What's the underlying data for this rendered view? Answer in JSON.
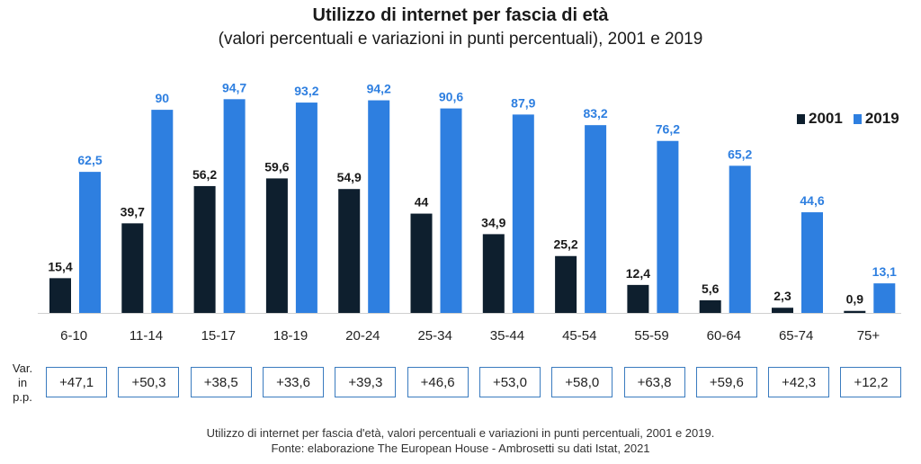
{
  "title": "Utilizzo di internet per fascia di età",
  "subtitle": "(valori percentuali e variazioni in punti percentuali), 2001 e 2019",
  "legend": [
    {
      "name": "2001",
      "color": "#0e1f2e"
    },
    {
      "name": "2019",
      "color": "#2e7fe0"
    }
  ],
  "chart_data": {
    "type": "bar",
    "title": "Utilizzo di internet per fascia di età",
    "subtitle": "(valori percentuali e variazioni in punti percentuali), 2001 e 2019",
    "categories": [
      "6-10",
      "11-14",
      "15-17",
      "18-19",
      "20-24",
      "25-34",
      "35-44",
      "45-54",
      "55-59",
      "60-64",
      "65-74",
      "75+"
    ],
    "series": [
      {
        "name": "2001",
        "color": "#0e1f2e",
        "values": [
          15.4,
          39.7,
          56.2,
          59.6,
          54.9,
          44,
          34.9,
          25.2,
          12.4,
          5.6,
          2.3,
          0.9
        ],
        "labels": [
          "15,4",
          "39,7",
          "56,2",
          "59,6",
          "54,9",
          "44",
          "34,9",
          "25,2",
          "12,4",
          "5,6",
          "2,3",
          "0,9"
        ]
      },
      {
        "name": "2019",
        "color": "#2e7fe0",
        "values": [
          62.5,
          90,
          94.7,
          93.2,
          94.2,
          90.6,
          87.9,
          83.2,
          76.2,
          65.2,
          44.6,
          13.1
        ],
        "labels": [
          "62,5",
          "90",
          "94,7",
          "93,2",
          "94,2",
          "90,6",
          "87,9",
          "83,2",
          "76,2",
          "65,2",
          "44,6",
          "13,1"
        ]
      }
    ],
    "ylim": [
      0,
      100
    ],
    "grid": false,
    "legend_position": "right",
    "variation_label": "Var. in p.p.",
    "variations": [
      "+47,1",
      "+50,3",
      "+38,5",
      "+33,6",
      "+39,3",
      "+46,6",
      "+53,0",
      "+58,0",
      "+63,8",
      "+59,6",
      "+42,3",
      "+12,2"
    ]
  },
  "variation_label_lines": [
    "Var.",
    "in",
    "p.p."
  ],
  "footer": {
    "line1": "Utilizzo di internet per fascia d'età, valori percentuali e variazioni in punti percentuali, 2001 e 2019.",
    "line2": "Fonte: elaborazione The European House - Ambrosetti su dati Istat, 2021"
  }
}
